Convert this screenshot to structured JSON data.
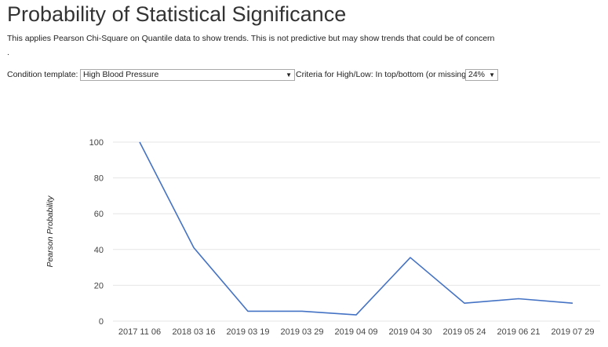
{
  "page": {
    "title": "Probability of Statistical Significance",
    "description": "This applies Pearson Chi-Square on Quantile data to show trends. This is not predictive but may show trends that could be of concern",
    "description_dot": "."
  },
  "controls": {
    "condition_label": "Condition template:",
    "condition_value": "High Blood Pressure",
    "criteria_label": "Criteria for High/Low: In top/bottom (or missing)",
    "criteria_value": "24%",
    "arrow_glyph": "▼"
  },
  "colors": {
    "line": "#4472c4",
    "grid": "#e6e6e6",
    "axis_text": "#444444"
  },
  "chart_data": {
    "type": "line",
    "ylabel": "Pearson Probability",
    "xlabel": "",
    "ylim": [
      0,
      100
    ],
    "yticks": [
      0,
      20,
      40,
      60,
      80,
      100
    ],
    "categories": [
      "2017 11 06",
      "2018 03 16",
      "2019 03 19",
      "2019 03 29",
      "2019 04 09",
      "2019 04 30",
      "2019 05 24",
      "2019 06 21",
      "2019 07 29"
    ],
    "series": [
      {
        "values": [
          100,
          41,
          5.5,
          5.5,
          3.5,
          35.5,
          10,
          12.5,
          10
        ]
      }
    ],
    "grid": true,
    "legend": "none"
  }
}
